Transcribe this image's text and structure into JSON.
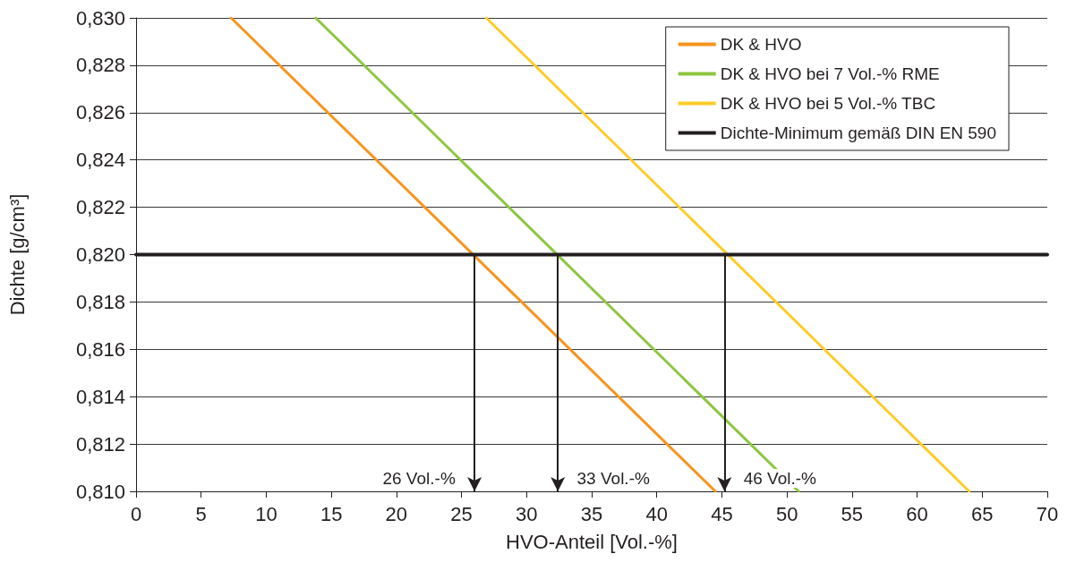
{
  "chart_data": {
    "type": "line",
    "xlabel": "HVO-Anteil [Vol.-%]",
    "ylabel": "Dichte [g/cm³]",
    "xlim": [
      0,
      70
    ],
    "xticks": [
      0,
      5,
      10,
      15,
      20,
      25,
      30,
      35,
      40,
      45,
      50,
      55,
      60,
      65,
      70
    ],
    "ylim": [
      0.81,
      0.83
    ],
    "yticks": [
      {
        "value": 0.81,
        "label": "0,810"
      },
      {
        "value": 0.812,
        "label": "0,812"
      },
      {
        "value": 0.814,
        "label": "0,814"
      },
      {
        "value": 0.816,
        "label": "0,816"
      },
      {
        "value": 0.818,
        "label": "0,818"
      },
      {
        "value": 0.82,
        "label": "0,820"
      },
      {
        "value": 0.822,
        "label": "0,822"
      },
      {
        "value": 0.824,
        "label": "0,824"
      },
      {
        "value": 0.826,
        "label": "0,826"
      },
      {
        "value": 0.828,
        "label": "0,828"
      },
      {
        "value": 0.83,
        "label": "0,830"
      }
    ],
    "grid": "y",
    "legend": "top right",
    "marker": "none",
    "line_style": "solid",
    "series": [
      {
        "name": "DK & HVO",
        "color": "#f7941d",
        "x": [
          7.3,
          44.5
        ],
        "values": [
          0.83,
          0.81
        ]
      },
      {
        "name": "DK & HVO bei 7 Vol.-% RME",
        "color": "#8dc63f",
        "x": [
          13.8,
          50.9
        ],
        "values": [
          0.83,
          0.81
        ]
      },
      {
        "name": "DK & HVO bei 5 Vol.-% TBC",
        "color": "#ffcb27",
        "x": [
          26.9,
          64.0
        ],
        "values": [
          0.83,
          0.81
        ]
      },
      {
        "name": "Dichte-Minimum gemäß DIN EN 590",
        "color": "#231f20",
        "x": [
          0,
          70
        ],
        "values": [
          0.82,
          0.82
        ]
      }
    ],
    "annotations": [
      {
        "text": "26 Vol.-%",
        "x": 26.0,
        "y": 0.82
      },
      {
        "text": "33 Vol.-%",
        "x": 32.4,
        "y": 0.82
      },
      {
        "text": "46 Vol.-%",
        "x": 45.2,
        "y": 0.82
      }
    ]
  }
}
